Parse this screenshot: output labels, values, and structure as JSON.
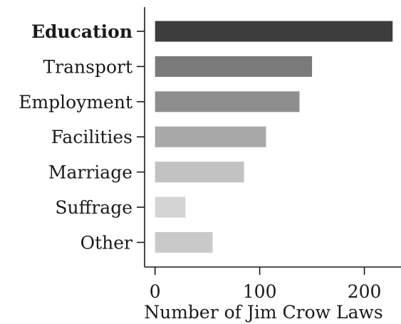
{
  "chart_data": {
    "type": "bar",
    "orientation": "horizontal",
    "categories": [
      "Education",
      "Transport",
      "Employment",
      "Facilities",
      "Marriage",
      "Suffrage",
      "Other"
    ],
    "values": [
      227,
      150,
      138,
      106,
      85,
      29,
      55
    ],
    "bold_category": "Education",
    "colors": [
      "#3d3d3d",
      "#7a7a7a",
      "#8e8e8e",
      "#a8a8a8",
      "#c2c2c2",
      "#d4d4d4",
      "#c9c9c9"
    ],
    "xlabel": "Number of Jim Crow Laws",
    "ylabel": "",
    "title": "",
    "xlim": [
      -10,
      235
    ],
    "xticks": [
      0,
      100,
      200
    ],
    "grid": false,
    "legend": "none"
  }
}
